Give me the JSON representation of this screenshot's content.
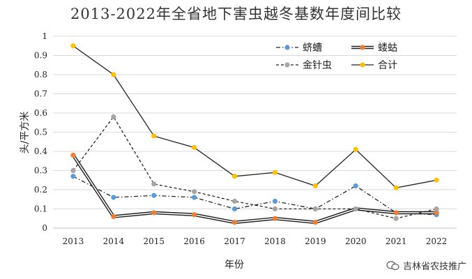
{
  "chart_data": {
    "type": "line",
    "title": "2013-2022年全省地下害虫越冬基数年度间比较",
    "xlabel": "年份",
    "ylabel": "头/平方米",
    "categories": [
      "2013",
      "2014",
      "2015",
      "2016",
      "2017",
      "2018",
      "2019",
      "2020",
      "2021",
      "2022"
    ],
    "ylim": [
      0,
      1
    ],
    "yticks": [
      "0",
      "0.1",
      "0.2",
      "0.3",
      "0.4",
      "0.5",
      "0.6",
      "0.7",
      "0.8",
      "0.9",
      "1"
    ],
    "grid": true,
    "legend_position": "top-right",
    "series": [
      {
        "name": "蛴螬",
        "color": "#5b9bd5",
        "style": "dash-dot",
        "values": [
          0.27,
          0.16,
          0.17,
          0.16,
          0.1,
          0.14,
          0.1,
          0.22,
          0.08,
          0.07
        ]
      },
      {
        "name": "蝼蛄",
        "color": "#ed7d31",
        "style": "double",
        "values": [
          0.38,
          0.06,
          0.08,
          0.07,
          0.03,
          0.05,
          0.03,
          0.1,
          0.08,
          0.08
        ]
      },
      {
        "name": "金针虫",
        "color": "#a5a5a5",
        "style": "dash",
        "values": [
          0.3,
          0.58,
          0.23,
          0.19,
          0.14,
          0.1,
          0.1,
          0.1,
          0.05,
          0.1
        ]
      },
      {
        "name": "合计",
        "color": "#ffc000",
        "style": "solid",
        "values": [
          0.95,
          0.8,
          0.48,
          0.42,
          0.27,
          0.29,
          0.22,
          0.41,
          0.21,
          0.25
        ]
      }
    ]
  },
  "watermark": {
    "text": "吉林省农技推广",
    "icon": "wechat-icon"
  }
}
